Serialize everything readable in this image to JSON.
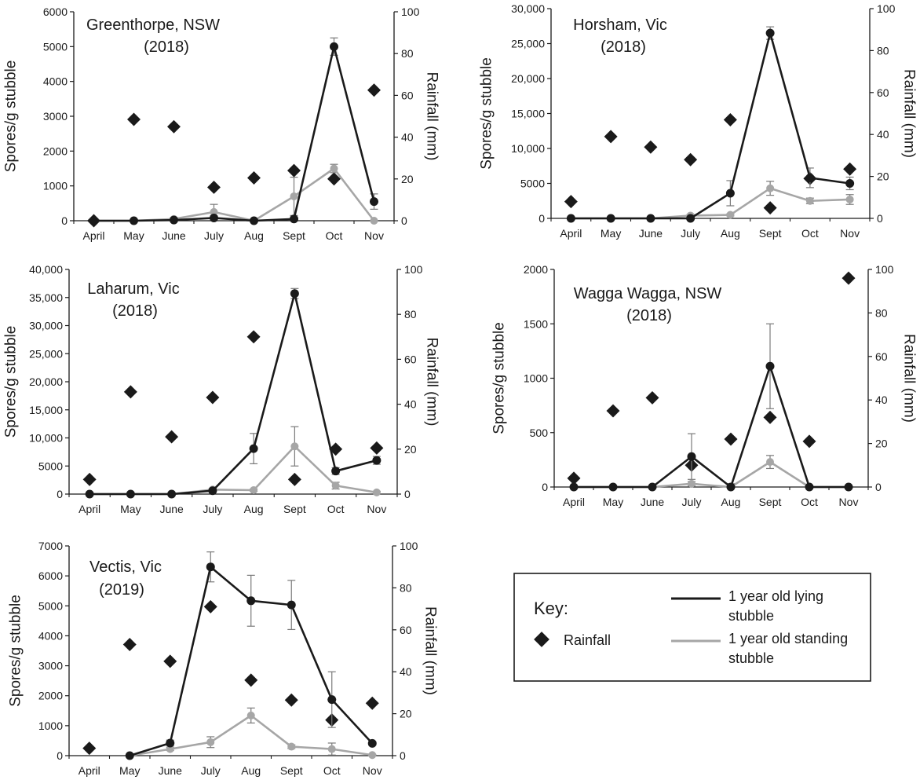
{
  "chart_data": [
    {
      "type": "line",
      "title_line1": "Greenthorpe, NSW",
      "title_line2": "(2018)",
      "ylabel": "Spores/g stubble",
      "y2label": "Rainfall (mm)",
      "categories": [
        "April",
        "May",
        "June",
        "July",
        "Aug",
        "Sept",
        "Oct",
        "Nov"
      ],
      "ylim": [
        0,
        6000
      ],
      "yticks": [
        "0",
        "1000",
        "2000",
        "3000",
        "4000",
        "5000",
        "6000"
      ],
      "y2lim": [
        0,
        100
      ],
      "y2ticks": [
        "0",
        "20",
        "40",
        "60",
        "80",
        "100"
      ],
      "series": [
        {
          "name": "1 year old lying stubble",
          "color": "#1a1a1a",
          "values": [
            0,
            0,
            20,
            80,
            0,
            50,
            5000,
            550
          ],
          "err": [
            0,
            0,
            20,
            60,
            0,
            60,
            250,
            220
          ]
        },
        {
          "name": "1 year old standing stubble",
          "color": "#a6a6a6",
          "values": [
            0,
            0,
            50,
            250,
            0,
            700,
            1500,
            0
          ],
          "err": [
            0,
            0,
            40,
            220,
            0,
            550,
            120,
            0
          ]
        }
      ],
      "rainfall": [
        0,
        48.5,
        45,
        16,
        20.5,
        24,
        20,
        62.5
      ]
    },
    {
      "type": "line",
      "title_line1": "Horsham, Vic",
      "title_line2": "(2018)",
      "ylabel": "Spores/g stubble",
      "y2label": "Rainfall (mm)",
      "categories": [
        "April",
        "May",
        "June",
        "July",
        "Aug",
        "Sept",
        "Oct",
        "Nov"
      ],
      "ylim": [
        0,
        30000
      ],
      "yticks": [
        "0",
        "5000",
        "10,000",
        "15,000",
        "20,000",
        "25,000",
        "30,000"
      ],
      "y2lim": [
        0,
        100
      ],
      "y2ticks": [
        "0",
        "20",
        "40",
        "60",
        "80",
        "100"
      ],
      "series": [
        {
          "name": "1 year old lying stubble",
          "color": "#1a1a1a",
          "values": [
            0,
            0,
            0,
            0,
            3600,
            26500,
            5800,
            5000
          ],
          "err": [
            0,
            0,
            0,
            0,
            1800,
            900,
            1400,
            900
          ]
        },
        {
          "name": "1 year old standing stubble",
          "color": "#a6a6a6",
          "values": [
            0,
            0,
            0,
            400,
            500,
            4300,
            2500,
            2700
          ],
          "err": [
            0,
            0,
            0,
            150,
            150,
            1000,
            400,
            700
          ]
        }
      ],
      "rainfall": [
        8,
        39,
        34,
        28,
        47,
        5,
        19,
        23.5
      ]
    },
    {
      "type": "line",
      "title_line1": "Laharum, Vic",
      "title_line2": "(2018)",
      "ylabel": "Spores/g stubble",
      "y2label": "Rainfall (mm)",
      "categories": [
        "April",
        "May",
        "June",
        "July",
        "Aug",
        "Sept",
        "Oct",
        "Nov"
      ],
      "ylim": [
        0,
        40000
      ],
      "yticks": [
        "0",
        "5000",
        "10,000",
        "15,000",
        "20,000",
        "25,000",
        "30,000",
        "35,000",
        "40,000"
      ],
      "y2lim": [
        0,
        100
      ],
      "y2ticks": [
        "0",
        "20",
        "40",
        "60",
        "80",
        "100"
      ],
      "series": [
        {
          "name": "1 year old lying stubble",
          "color": "#1a1a1a",
          "values": [
            0,
            0,
            0,
            600,
            8100,
            35700,
            4100,
            6000
          ],
          "err": [
            0,
            0,
            0,
            200,
            2700,
            900,
            600,
            700
          ]
        },
        {
          "name": "1 year old standing stubble",
          "color": "#a6a6a6",
          "values": [
            0,
            0,
            0,
            800,
            700,
            8500,
            1500,
            300
          ],
          "err": [
            0,
            0,
            0,
            200,
            200,
            3500,
            600,
            200
          ]
        }
      ],
      "rainfall": [
        6.5,
        45.5,
        25.5,
        43,
        70,
        6.5,
        20,
        20.5
      ]
    },
    {
      "type": "line",
      "title_line1": "Wagga Wagga, NSW",
      "title_line2": "(2018)",
      "ylabel": "Spores/g stubble",
      "y2label": "Rainfall (mm)",
      "categories": [
        "April",
        "May",
        "June",
        "July",
        "Aug",
        "Sept",
        "Oct",
        "Nov"
      ],
      "ylim": [
        0,
        2000
      ],
      "yticks": [
        "0",
        "500",
        "1000",
        "1500",
        "2000"
      ],
      "y2lim": [
        0,
        100
      ],
      "y2ticks": [
        "0",
        "20",
        "40",
        "60",
        "80",
        "100"
      ],
      "series": [
        {
          "name": "1 year old lying stubble",
          "color": "#1a1a1a",
          "values": [
            0,
            0,
            0,
            280,
            0,
            1110,
            0,
            0
          ],
          "err": [
            0,
            0,
            0,
            210,
            30,
            390,
            0,
            0
          ]
        },
        {
          "name": "1 year old standing stubble",
          "color": "#a6a6a6",
          "values": [
            0,
            0,
            0,
            30,
            0,
            230,
            0,
            0
          ],
          "err": [
            0,
            0,
            0,
            20,
            0,
            60,
            0,
            0
          ]
        }
      ],
      "rainfall": [
        4,
        35,
        41,
        10,
        22,
        32,
        21,
        96
      ]
    },
    {
      "type": "line",
      "title_line1": "Vectis, Vic",
      "title_line2": "(2019)",
      "ylabel": "Spores/g stubble",
      "y2label": "Rainfall (mm)",
      "categories": [
        "April",
        "May",
        "June",
        "July",
        "Aug",
        "Sept",
        "Oct",
        "Nov"
      ],
      "ylim": [
        0,
        7000
      ],
      "yticks": [
        "0",
        "1000",
        "2000",
        "3000",
        "4000",
        "5000",
        "6000",
        "7000"
      ],
      "y2lim": [
        0,
        100
      ],
      "y2ticks": [
        "0",
        "20",
        "40",
        "60",
        "80",
        "100"
      ],
      "series": [
        {
          "name": "1 year old lying stubble",
          "color": "#1a1a1a",
          "values": [
            null,
            0,
            420,
            6300,
            5170,
            5030,
            1870,
            410
          ],
          "err": [
            0,
            0,
            100,
            500,
            850,
            820,
            930,
            60
          ]
        },
        {
          "name": "1 year old standing stubble",
          "color": "#a6a6a6",
          "values": [
            null,
            0,
            220,
            450,
            1340,
            300,
            220,
            20
          ],
          "err": [
            0,
            0,
            50,
            180,
            250,
            60,
            200,
            20
          ]
        }
      ],
      "rainfall": [
        3.5,
        53,
        45,
        71,
        36,
        26.5,
        17,
        25
      ]
    }
  ],
  "key": {
    "title": "Key:",
    "lying_line1": "1 year old lying",
    "lying_line2": "stubble",
    "standing_line1": "1 year old standing",
    "standing_line2": "stubble",
    "rainfall_label": "Rainfall",
    "lying_color": "#1a1a1a",
    "standing_color": "#a6a6a6",
    "rainfall_color": "#1a1a1a"
  }
}
